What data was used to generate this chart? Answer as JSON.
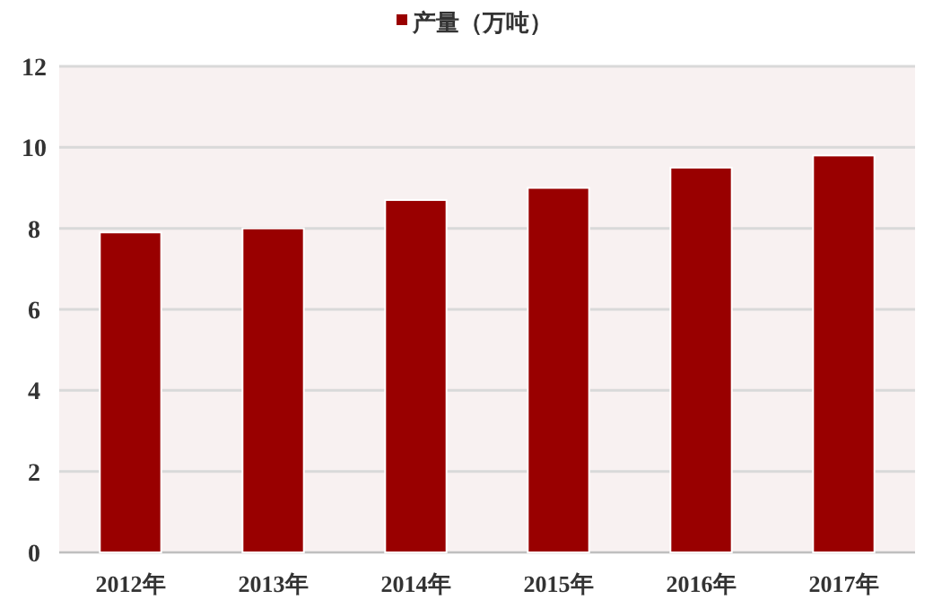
{
  "chart_data": {
    "type": "bar",
    "categories": [
      "2012年",
      "2013年",
      "2014年",
      "2015年",
      "2016年",
      "2017年"
    ],
    "series": [
      {
        "name": "产量（万吨）",
        "color": "#990000",
        "values": [
          7.9,
          8.0,
          8.7,
          9.0,
          9.5,
          9.8
        ]
      }
    ],
    "ylim": [
      0,
      12
    ],
    "yticks": [
      0,
      2,
      4,
      6,
      8,
      10,
      12
    ],
    "grid": "y",
    "legend": "top"
  }
}
